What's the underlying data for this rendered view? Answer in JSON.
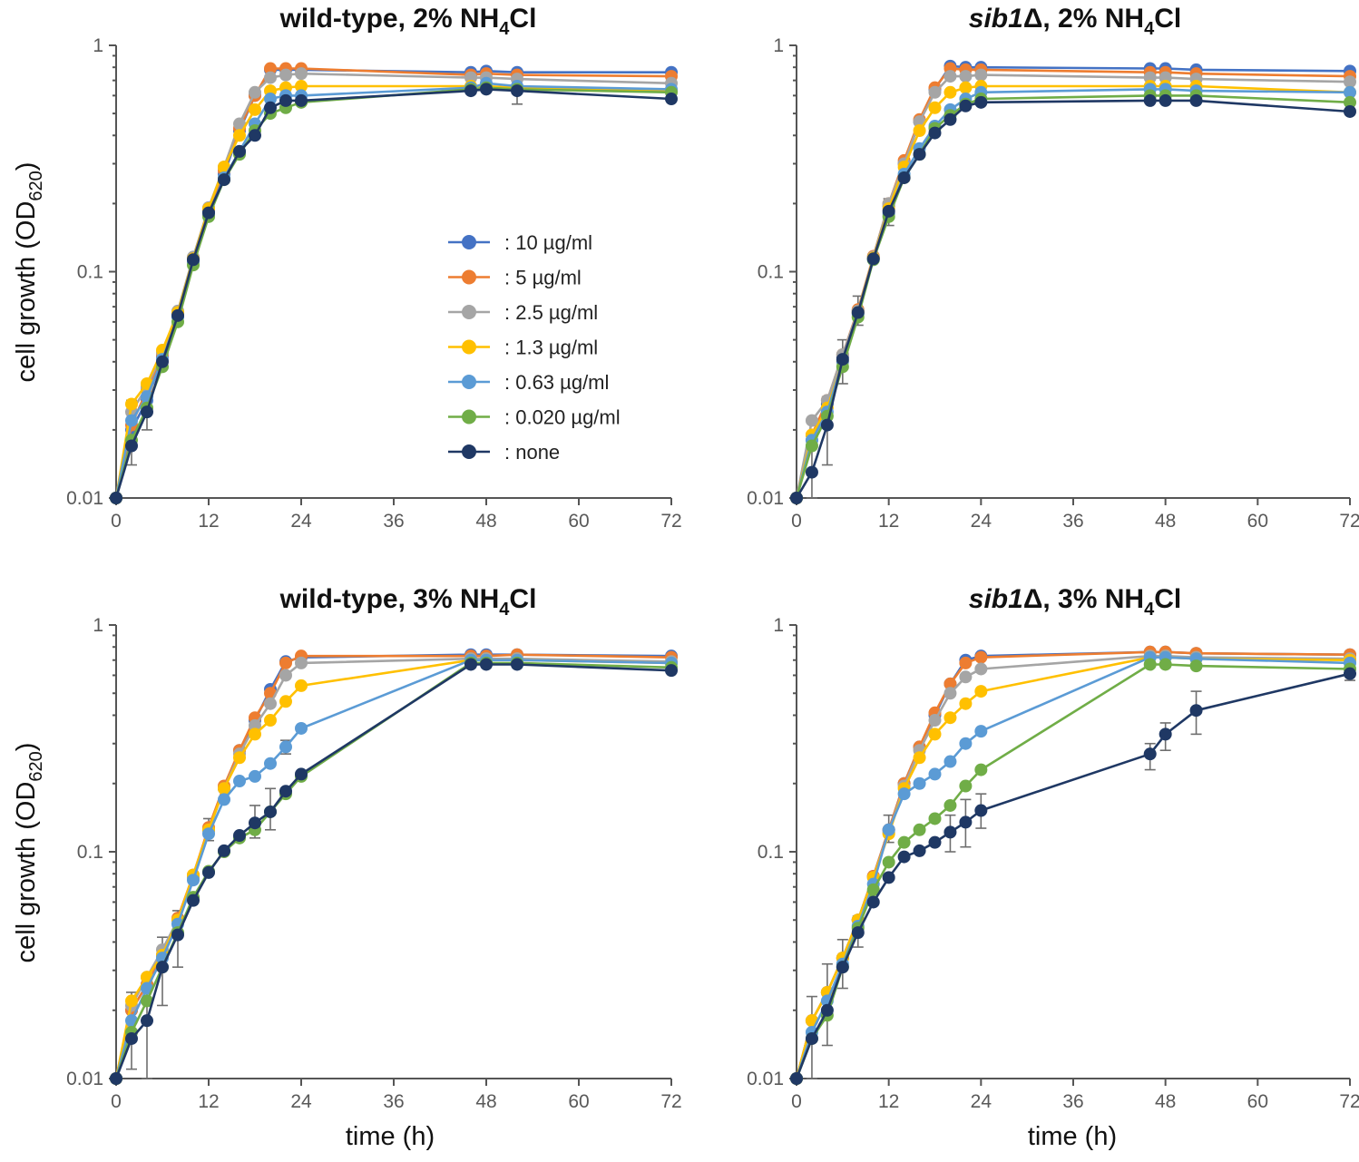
{
  "figure": {
    "ylabel_prefix": "cell growth (OD",
    "ylabel_sub": "620",
    "ylabel_suffix": ")",
    "xlabel": "time (h)"
  },
  "legend": {
    "entries": [
      {
        "label": ": 10 µg/ml",
        "color": "#4472C4"
      },
      {
        "label": ": 5 µg/ml",
        "color": "#ED7D31"
      },
      {
        "label": ": 2.5 µg/ml",
        "color": "#A5A5A5"
      },
      {
        "label": ": 1.3 µg/ml",
        "color": "#FFC000"
      },
      {
        "label": ": 0.63 µg/ml",
        "color": "#5B9BD5"
      },
      {
        "label": ": 0.020 µg/ml",
        "color": "#70AD47"
      },
      {
        "label": ": none",
        "color": "#1F3864"
      }
    ]
  },
  "chart_data": [
    {
      "type": "line",
      "title_parts": [
        {
          "text": "wild-type, 2% NH"
        },
        {
          "text": "4",
          "sub": true
        },
        {
          "text": "Cl"
        }
      ],
      "xlabel": "",
      "ylabel": "cell growth (OD620)",
      "yscale": "log",
      "xlim": [
        0,
        72
      ],
      "ylim": [
        0.01,
        1
      ],
      "xticks": [
        0,
        12,
        24,
        36,
        48,
        60,
        72
      ],
      "yticks": [
        {
          "value": 0.01,
          "label": "0.01"
        },
        {
          "value": 0.1,
          "label": "0.1"
        },
        {
          "value": 1,
          "label": "1"
        }
      ],
      "x": [
        0,
        2,
        4,
        6,
        8,
        10,
        12,
        14,
        16,
        18,
        20,
        22,
        24,
        46,
        48,
        52,
        72
      ],
      "series": [
        {
          "name": "10 µg/ml",
          "color": "#4472C4",
          "values": [
            0.01,
            0.02,
            0.027,
            0.042,
            0.064,
            0.112,
            0.185,
            0.27,
            0.42,
            0.6,
            0.78,
            0.78,
            0.78,
            0.76,
            0.77,
            0.76,
            0.76
          ]
        },
        {
          "name": "5 µg/ml",
          "color": "#ED7D31",
          "values": [
            0.01,
            0.021,
            0.03,
            0.043,
            0.066,
            0.114,
            0.19,
            0.28,
            0.43,
            0.6,
            0.79,
            0.79,
            0.79,
            0.74,
            0.75,
            0.74,
            0.73
          ]
        },
        {
          "name": "2.5 µg/ml",
          "color": "#A5A5A5",
          "values": [
            0.01,
            0.024,
            0.031,
            0.044,
            0.067,
            0.116,
            0.192,
            0.29,
            0.45,
            0.62,
            0.72,
            0.74,
            0.75,
            0.72,
            0.72,
            0.71,
            0.68
          ]
        },
        {
          "name": "1.3 µg/ml",
          "color": "#FFC000",
          "values": [
            0.01,
            0.026,
            0.032,
            0.045,
            0.066,
            0.114,
            0.19,
            0.29,
            0.4,
            0.52,
            0.63,
            0.65,
            0.66,
            0.66,
            0.66,
            0.65,
            0.63
          ]
        },
        {
          "name": "0.63 µg/ml",
          "color": "#5B9BD5",
          "values": [
            0.01,
            0.022,
            0.028,
            0.041,
            0.063,
            0.11,
            0.18,
            0.26,
            0.34,
            0.45,
            0.58,
            0.6,
            0.6,
            0.65,
            0.68,
            0.66,
            0.64
          ]
        },
        {
          "name": "0.020 µg/ml",
          "color": "#70AD47",
          "values": [
            0.01,
            0.018,
            0.025,
            0.038,
            0.06,
            0.107,
            0.175,
            0.255,
            0.33,
            0.42,
            0.5,
            0.53,
            0.56,
            0.64,
            0.65,
            0.64,
            0.62
          ]
        },
        {
          "name": "none",
          "color": "#1F3864",
          "values": [
            0.01,
            0.017,
            0.024,
            0.04,
            0.064,
            0.113,
            0.182,
            0.255,
            0.34,
            0.4,
            0.53,
            0.57,
            0.57,
            0.63,
            0.64,
            0.63,
            0.58
          ]
        }
      ],
      "error_bars": [
        {
          "x": 2,
          "low": 0.014,
          "high": 0.027
        },
        {
          "x": 4,
          "low": 0.02,
          "high": 0.029
        },
        {
          "x": 52,
          "low": 0.55,
          "high": 0.71
        }
      ]
    },
    {
      "type": "line",
      "title_parts": [
        {
          "text": "sib1",
          "italic": true
        },
        {
          "text": "Δ, 2% NH"
        },
        {
          "text": "4",
          "sub": true
        },
        {
          "text": "Cl"
        }
      ],
      "xlabel": "",
      "ylabel": "",
      "yscale": "log",
      "xlim": [
        0,
        72
      ],
      "ylim": [
        0.01,
        1
      ],
      "xticks": [
        0,
        12,
        24,
        36,
        48,
        60,
        72
      ],
      "yticks": [
        {
          "value": 0.01,
          "label": "0.01"
        },
        {
          "value": 0.1,
          "label": "0.1"
        },
        {
          "value": 1,
          "label": "1"
        }
      ],
      "x": [
        0,
        2,
        4,
        6,
        8,
        10,
        12,
        14,
        16,
        18,
        20,
        22,
        24,
        46,
        48,
        52,
        72
      ],
      "series": [
        {
          "name": "10 µg/ml",
          "color": "#4472C4",
          "values": [
            0.01,
            0.018,
            0.026,
            0.042,
            0.067,
            0.115,
            0.195,
            0.3,
            0.46,
            0.64,
            0.81,
            0.8,
            0.8,
            0.79,
            0.79,
            0.78,
            0.77
          ]
        },
        {
          "name": "5 µg/ml",
          "color": "#ED7D31",
          "values": [
            0.01,
            0.019,
            0.027,
            0.043,
            0.068,
            0.117,
            0.2,
            0.31,
            0.47,
            0.65,
            0.79,
            0.78,
            0.78,
            0.76,
            0.76,
            0.75,
            0.73
          ]
        },
        {
          "name": "2.5 µg/ml",
          "color": "#A5A5A5",
          "values": [
            0.01,
            0.022,
            0.027,
            0.043,
            0.067,
            0.116,
            0.2,
            0.3,
            0.46,
            0.62,
            0.73,
            0.73,
            0.74,
            0.72,
            0.72,
            0.71,
            0.69
          ]
        },
        {
          "name": "1.3 µg/ml",
          "color": "#FFC000",
          "values": [
            0.01,
            0.019,
            0.025,
            0.04,
            0.066,
            0.115,
            0.19,
            0.29,
            0.42,
            0.53,
            0.62,
            0.65,
            0.66,
            0.66,
            0.66,
            0.66,
            0.62
          ]
        },
        {
          "name": "0.63 µg/ml",
          "color": "#5B9BD5",
          "values": [
            0.01,
            0.018,
            0.024,
            0.04,
            0.065,
            0.113,
            0.18,
            0.27,
            0.35,
            0.44,
            0.52,
            0.58,
            0.62,
            0.64,
            0.64,
            0.63,
            0.62
          ]
        },
        {
          "name": "0.020 µg/ml",
          "color": "#70AD47",
          "values": [
            0.01,
            0.017,
            0.023,
            0.038,
            0.063,
            0.113,
            0.175,
            0.26,
            0.33,
            0.43,
            0.49,
            0.55,
            0.58,
            0.6,
            0.6,
            0.6,
            0.56
          ]
        },
        {
          "name": "none",
          "color": "#1F3864",
          "values": [
            0.01,
            0.013,
            0.021,
            0.041,
            0.066,
            0.114,
            0.185,
            0.26,
            0.33,
            0.41,
            0.47,
            0.54,
            0.56,
            0.57,
            0.57,
            0.57,
            0.51
          ]
        }
      ],
      "error_bars": [
        {
          "x": 2,
          "low": 0.01,
          "high": 0.017
        },
        {
          "x": 4,
          "low": 0.014,
          "high": 0.028
        },
        {
          "x": 6,
          "low": 0.032,
          "high": 0.05
        },
        {
          "x": 8,
          "low": 0.058,
          "high": 0.078
        },
        {
          "x": 12,
          "low": 0.16,
          "high": 0.21
        }
      ]
    },
    {
      "type": "line",
      "title_parts": [
        {
          "text": "wild-type, 3% NH"
        },
        {
          "text": "4",
          "sub": true
        },
        {
          "text": "Cl"
        }
      ],
      "xlabel": "time (h)",
      "ylabel": "cell growth (OD620)",
      "yscale": "log",
      "xlim": [
        0,
        72
      ],
      "ylim": [
        0.01,
        1
      ],
      "xticks": [
        0,
        12,
        24,
        36,
        48,
        60,
        72
      ],
      "yticks": [
        {
          "value": 0.01,
          "label": "0.01"
        },
        {
          "value": 0.1,
          "label": "0.1"
        },
        {
          "value": 1,
          "label": "1"
        }
      ],
      "x": [
        0,
        2,
        4,
        6,
        8,
        10,
        12,
        14,
        16,
        18,
        20,
        22,
        24,
        46,
        48,
        52,
        72
      ],
      "series": [
        {
          "name": "10 µg/ml",
          "color": "#4472C4",
          "values": [
            0.01,
            0.02,
            0.026,
            0.035,
            0.05,
            0.078,
            0.125,
            0.19,
            0.28,
            0.38,
            0.52,
            0.69,
            0.72,
            0.74,
            0.74,
            0.74,
            0.73
          ]
        },
        {
          "name": "5 µg/ml",
          "color": "#ED7D31",
          "values": [
            0.01,
            0.02,
            0.026,
            0.035,
            0.051,
            0.079,
            0.128,
            0.195,
            0.28,
            0.39,
            0.5,
            0.68,
            0.73,
            0.73,
            0.73,
            0.74,
            0.72
          ]
        },
        {
          "name": "2.5 µg/ml",
          "color": "#A5A5A5",
          "values": [
            0.01,
            0.021,
            0.028,
            0.037,
            0.05,
            0.077,
            0.124,
            0.19,
            0.27,
            0.36,
            0.45,
            0.6,
            0.68,
            0.71,
            0.71,
            0.71,
            0.69
          ]
        },
        {
          "name": "1.3 µg/ml",
          "color": "#FFC000",
          "values": [
            0.01,
            0.022,
            0.028,
            0.035,
            0.05,
            0.079,
            0.125,
            0.19,
            0.26,
            0.33,
            0.38,
            0.46,
            0.54,
            0.7,
            0.7,
            0.7,
            0.68
          ]
        },
        {
          "name": "0.63 µg/ml",
          "color": "#5B9BD5",
          "values": [
            0.01,
            0.018,
            0.025,
            0.034,
            0.048,
            0.075,
            0.12,
            0.17,
            0.205,
            0.215,
            0.245,
            0.29,
            0.35,
            0.7,
            0.7,
            0.7,
            0.68
          ]
        },
        {
          "name": "0.020 µg/ml",
          "color": "#70AD47",
          "values": [
            0.01,
            0.016,
            0.022,
            0.031,
            0.044,
            0.063,
            0.082,
            0.1,
            0.115,
            0.125,
            0.15,
            0.18,
            0.215,
            0.68,
            0.68,
            0.68,
            0.65
          ]
        },
        {
          "name": "none",
          "color": "#1F3864",
          "values": [
            0.01,
            0.015,
            0.018,
            0.031,
            0.043,
            0.061,
            0.081,
            0.101,
            0.118,
            0.134,
            0.15,
            0.185,
            0.22,
            0.67,
            0.67,
            0.67,
            0.63
          ]
        }
      ],
      "error_bars": [
        {
          "x": 2,
          "low": 0.011,
          "high": 0.024
        },
        {
          "x": 4,
          "low": 0.01,
          "high": 0.027
        },
        {
          "x": 6,
          "low": 0.021,
          "high": 0.042
        },
        {
          "x": 8,
          "low": 0.031,
          "high": 0.055
        },
        {
          "x": 12,
          "low": 0.112,
          "high": 0.14
        },
        {
          "x": 18,
          "low": 0.115,
          "high": 0.16
        },
        {
          "x": 20,
          "low": 0.125,
          "high": 0.19
        },
        {
          "x": 22,
          "low": 0.27,
          "high": 0.31
        }
      ]
    },
    {
      "type": "line",
      "title_parts": [
        {
          "text": "sib1",
          "italic": true
        },
        {
          "text": "Δ, 3% NH"
        },
        {
          "text": "4",
          "sub": true
        },
        {
          "text": "Cl"
        }
      ],
      "xlabel": "time (h)",
      "ylabel": "",
      "yscale": "log",
      "xlim": [
        0,
        72
      ],
      "ylim": [
        0.01,
        1
      ],
      "xticks": [
        0,
        12,
        24,
        36,
        48,
        60,
        72
      ],
      "yticks": [
        {
          "value": 0.01,
          "label": "0.01"
        },
        {
          "value": 0.1,
          "label": "0.1"
        },
        {
          "value": 1,
          "label": "1"
        }
      ],
      "x": [
        0,
        2,
        4,
        6,
        8,
        10,
        12,
        14,
        16,
        18,
        20,
        22,
        24,
        46,
        48,
        52,
        72
      ],
      "series": [
        {
          "name": "10 µg/ml",
          "color": "#4472C4",
          "values": [
            0.01,
            0.018,
            0.024,
            0.034,
            0.05,
            0.078,
            0.125,
            0.2,
            0.29,
            0.4,
            0.55,
            0.7,
            0.73,
            0.76,
            0.76,
            0.75,
            0.74
          ]
        },
        {
          "name": "5 µg/ml",
          "color": "#ED7D31",
          "values": [
            0.01,
            0.018,
            0.024,
            0.034,
            0.05,
            0.078,
            0.125,
            0.2,
            0.29,
            0.41,
            0.55,
            0.68,
            0.72,
            0.76,
            0.76,
            0.75,
            0.74
          ]
        },
        {
          "name": "2.5 µg/ml",
          "color": "#A5A5A5",
          "values": [
            0.01,
            0.018,
            0.024,
            0.034,
            0.05,
            0.077,
            0.122,
            0.195,
            0.28,
            0.38,
            0.5,
            0.59,
            0.64,
            0.73,
            0.73,
            0.72,
            0.71
          ]
        },
        {
          "name": "1.3 µg/ml",
          "color": "#FFC000",
          "values": [
            0.01,
            0.018,
            0.024,
            0.034,
            0.05,
            0.077,
            0.12,
            0.19,
            0.26,
            0.33,
            0.39,
            0.45,
            0.51,
            0.72,
            0.72,
            0.71,
            0.7
          ]
        },
        {
          "name": "0.63 µg/ml",
          "color": "#5B9BD5",
          "values": [
            0.01,
            0.016,
            0.022,
            0.032,
            0.047,
            0.072,
            0.125,
            0.18,
            0.2,
            0.22,
            0.25,
            0.3,
            0.34,
            0.72,
            0.72,
            0.71,
            0.68
          ]
        },
        {
          "name": "0.020 µg/ml",
          "color": "#70AD47",
          "values": [
            0.01,
            0.015,
            0.019,
            0.031,
            0.046,
            0.068,
            0.09,
            0.11,
            0.125,
            0.14,
            0.16,
            0.195,
            0.23,
            0.67,
            0.67,
            0.66,
            0.64
          ]
        },
        {
          "name": "none",
          "color": "#1F3864",
          "values": [
            0.01,
            0.015,
            0.02,
            0.031,
            0.044,
            0.06,
            0.077,
            0.095,
            0.101,
            0.11,
            0.122,
            0.135,
            0.152,
            0.27,
            0.33,
            0.42,
            0.61
          ]
        }
      ],
      "error_bars": [
        {
          "x": 2,
          "low": 0.01,
          "high": 0.023
        },
        {
          "x": 4,
          "low": 0.014,
          "high": 0.032
        },
        {
          "x": 6,
          "low": 0.025,
          "high": 0.041
        },
        {
          "x": 8,
          "low": 0.038,
          "high": 0.052
        },
        {
          "x": 12,
          "low": 0.11,
          "high": 0.145
        },
        {
          "x": 20,
          "low": 0.1,
          "high": 0.145
        },
        {
          "x": 22,
          "low": 0.105,
          "high": 0.17
        },
        {
          "x": 24,
          "low": 0.127,
          "high": 0.18
        },
        {
          "x": 46,
          "low": 0.23,
          "high": 0.3
        },
        {
          "x": 48,
          "low": 0.28,
          "high": 0.37
        },
        {
          "x": 52,
          "low": 0.33,
          "high": 0.51
        },
        {
          "x": 72,
          "low": 0.57,
          "high": 0.66
        }
      ]
    }
  ]
}
